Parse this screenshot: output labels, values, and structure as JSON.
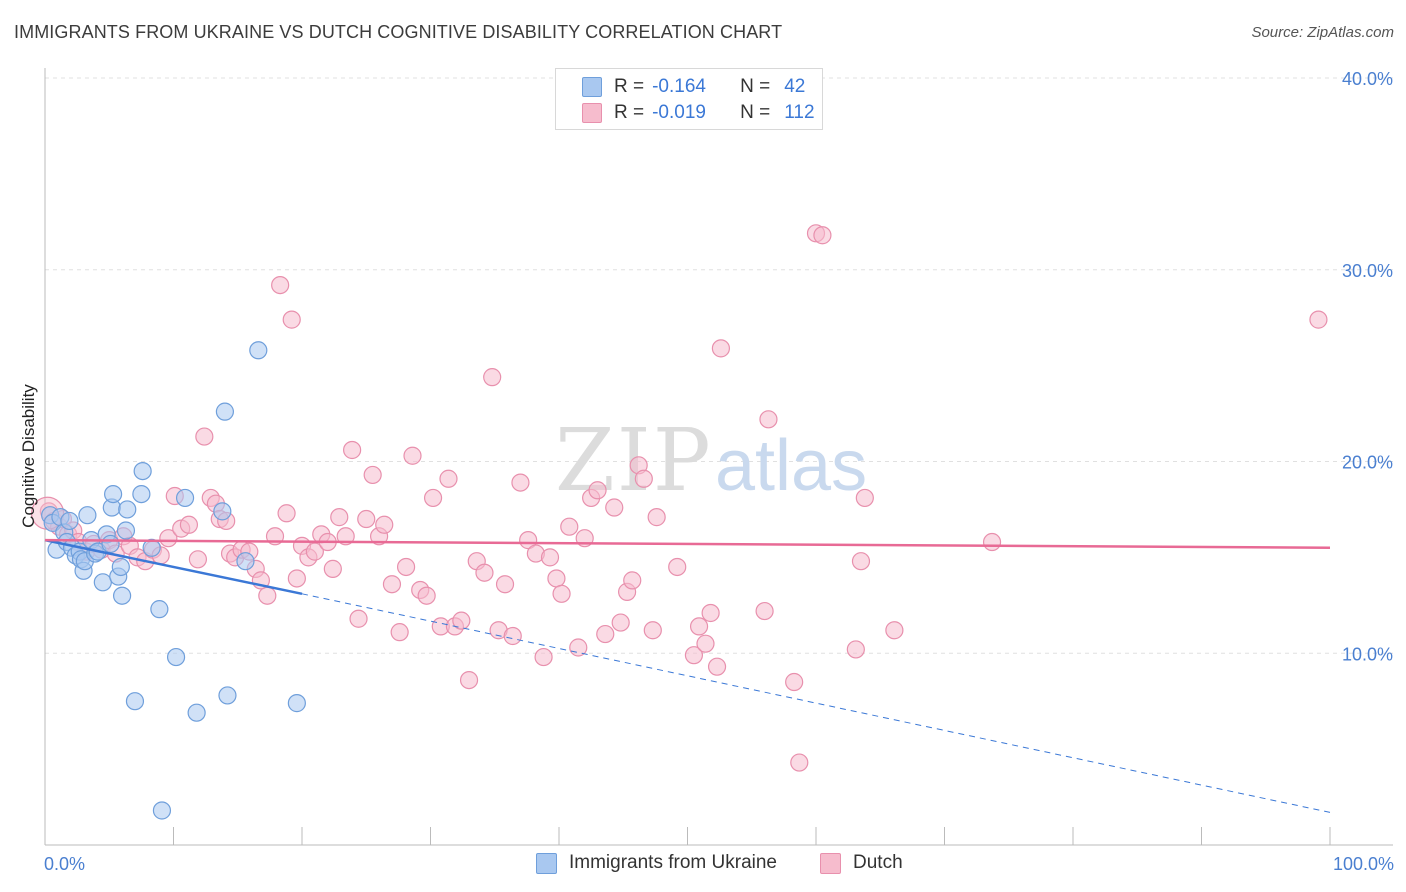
{
  "title": "IMMIGRANTS FROM UKRAINE VS DUTCH COGNITIVE DISABILITY CORRELATION CHART",
  "source": "Source: ZipAtlas.com",
  "watermark": {
    "zip": "ZIP",
    "atlas": "atlas"
  },
  "legend": {
    "rows": [
      {
        "r_label": "R =",
        "r_value": "-0.164",
        "n_label": "N =",
        "n_value": "42",
        "color": "#a9c8f0",
        "border": "#6f9fdb"
      },
      {
        "r_label": "R =",
        "r_value": "-0.019",
        "n_label": "N =",
        "n_value": "112",
        "color": "#f6bccd",
        "border": "#e890ad"
      }
    ]
  },
  "bottom_legend": [
    {
      "label": "Immigrants from Ukraine",
      "color": "#a9c8f0",
      "border": "#6f9fdb"
    },
    {
      "label": "Dutch",
      "color": "#f6bccd",
      "border": "#e890ad"
    }
  ],
  "chart_data": {
    "type": "scatter",
    "title": "IMMIGRANTS FROM UKRAINE VS DUTCH COGNITIVE DISABILITY CORRELATION CHART",
    "xlabel": "",
    "ylabel": "Cognitive Disability",
    "xlim": [
      0,
      100
    ],
    "ylim": [
      0,
      40
    ],
    "x_tick_labels": [
      "0.0%",
      "100.0%"
    ],
    "y_ticks": [
      10,
      20,
      30,
      40
    ],
    "y_tick_labels": [
      "10.0%",
      "20.0%",
      "30.0%",
      "40.0%"
    ],
    "grid": true,
    "series": [
      {
        "name": "Immigrants from Ukraine",
        "color": "#a9c8f0",
        "stroke": "#6f9fdb",
        "trend_color": "#3b78d6",
        "trend": {
          "x0": 0,
          "y0": 15.9,
          "x1": 20,
          "y1": 13.1,
          "dash_to_x": 100,
          "dash_to_y": 1.7
        },
        "points": [
          [
            0.4,
            17.2
          ],
          [
            0.6,
            16.8
          ],
          [
            0.9,
            15.4
          ],
          [
            1.2,
            17.1
          ],
          [
            1.5,
            16.3
          ],
          [
            1.7,
            15.8
          ],
          [
            1.9,
            16.9
          ],
          [
            2.1,
            15.5
          ],
          [
            2.4,
            15.1
          ],
          [
            2.7,
            15.3
          ],
          [
            2.8,
            14.9
          ],
          [
            3.0,
            14.3
          ],
          [
            3.1,
            14.8
          ],
          [
            3.3,
            17.2
          ],
          [
            3.6,
            15.9
          ],
          [
            3.9,
            15.2
          ],
          [
            4.1,
            15.3
          ],
          [
            4.5,
            13.7
          ],
          [
            4.8,
            16.2
          ],
          [
            5.1,
            15.7
          ],
          [
            5.2,
            17.6
          ],
          [
            5.3,
            18.3
          ],
          [
            5.7,
            14.0
          ],
          [
            5.9,
            14.5
          ],
          [
            6.0,
            13.0
          ],
          [
            6.3,
            16.4
          ],
          [
            6.4,
            17.5
          ],
          [
            7.0,
            7.5
          ],
          [
            7.5,
            18.3
          ],
          [
            7.6,
            19.5
          ],
          [
            8.3,
            15.5
          ],
          [
            8.9,
            12.3
          ],
          [
            9.1,
            1.8
          ],
          [
            10.2,
            9.8
          ],
          [
            10.9,
            18.1
          ],
          [
            11.8,
            6.9
          ],
          [
            13.8,
            17.4
          ],
          [
            14.0,
            22.6
          ],
          [
            14.2,
            7.8
          ],
          [
            15.6,
            14.8
          ],
          [
            16.6,
            25.8
          ],
          [
            19.6,
            7.4
          ]
        ]
      },
      {
        "name": "Dutch",
        "color": "#f6bccd",
        "stroke": "#e890ad",
        "trend_color": "#e86a95",
        "trend": {
          "x0": 0,
          "y0": 15.9,
          "x1": 100,
          "y1": 15.5
        },
        "points": [
          [
            0.3,
            17.4
          ],
          [
            0.7,
            16.9
          ],
          [
            1.1,
            16.6
          ],
          [
            1.4,
            17.0
          ],
          [
            1.8,
            16.2
          ],
          [
            2.2,
            16.4
          ],
          [
            2.6,
            15.8
          ],
          [
            3.2,
            15.3
          ],
          [
            3.8,
            15.7
          ],
          [
            4.4,
            15.4
          ],
          [
            5.0,
            15.9
          ],
          [
            5.5,
            15.2
          ],
          [
            6.1,
            16.1
          ],
          [
            6.6,
            15.6
          ],
          [
            7.2,
            15.0
          ],
          [
            7.8,
            14.8
          ],
          [
            8.4,
            15.4
          ],
          [
            9.0,
            15.1
          ],
          [
            9.6,
            16.0
          ],
          [
            10.1,
            18.2
          ],
          [
            10.6,
            16.5
          ],
          [
            11.2,
            16.7
          ],
          [
            11.9,
            14.9
          ],
          [
            12.4,
            21.3
          ],
          [
            12.9,
            18.1
          ],
          [
            13.3,
            17.8
          ],
          [
            13.6,
            17.0
          ],
          [
            14.1,
            16.9
          ],
          [
            14.4,
            15.2
          ],
          [
            14.8,
            15.0
          ],
          [
            15.3,
            15.4
          ],
          [
            15.9,
            15.3
          ],
          [
            16.4,
            14.4
          ],
          [
            16.8,
            13.8
          ],
          [
            17.3,
            13.0
          ],
          [
            17.9,
            16.1
          ],
          [
            18.3,
            29.2
          ],
          [
            18.8,
            17.3
          ],
          [
            19.2,
            27.4
          ],
          [
            19.6,
            13.9
          ],
          [
            20.0,
            15.6
          ],
          [
            20.5,
            15.0
          ],
          [
            21.0,
            15.3
          ],
          [
            21.5,
            16.2
          ],
          [
            22.0,
            15.8
          ],
          [
            22.4,
            14.4
          ],
          [
            22.9,
            17.1
          ],
          [
            23.4,
            16.1
          ],
          [
            23.9,
            20.6
          ],
          [
            24.4,
            11.8
          ],
          [
            25.0,
            17.0
          ],
          [
            25.5,
            19.3
          ],
          [
            26.0,
            16.1
          ],
          [
            26.4,
            16.7
          ],
          [
            27.0,
            13.6
          ],
          [
            27.6,
            11.1
          ],
          [
            28.1,
            14.5
          ],
          [
            28.6,
            20.3
          ],
          [
            29.2,
            13.3
          ],
          [
            29.7,
            13.0
          ],
          [
            30.2,
            18.1
          ],
          [
            30.8,
            11.4
          ],
          [
            31.4,
            19.1
          ],
          [
            31.9,
            11.4
          ],
          [
            32.4,
            11.7
          ],
          [
            33.0,
            8.6
          ],
          [
            33.6,
            14.8
          ],
          [
            34.2,
            14.2
          ],
          [
            34.8,
            24.4
          ],
          [
            35.3,
            11.2
          ],
          [
            35.8,
            13.6
          ],
          [
            36.4,
            10.9
          ],
          [
            37.0,
            18.9
          ],
          [
            37.6,
            15.9
          ],
          [
            38.2,
            15.2
          ],
          [
            38.8,
            9.8
          ],
          [
            39.3,
            15.0
          ],
          [
            39.8,
            13.9
          ],
          [
            40.2,
            13.1
          ],
          [
            40.8,
            16.6
          ],
          [
            41.5,
            10.3
          ],
          [
            42.0,
            16.0
          ],
          [
            42.5,
            18.1
          ],
          [
            43.0,
            18.5
          ],
          [
            43.6,
            11.0
          ],
          [
            44.3,
            17.6
          ],
          [
            44.8,
            11.6
          ],
          [
            45.3,
            13.2
          ],
          [
            45.7,
            13.8
          ],
          [
            46.2,
            19.8
          ],
          [
            46.6,
            19.1
          ],
          [
            47.3,
            11.2
          ],
          [
            47.6,
            17.1
          ],
          [
            49.2,
            14.5
          ],
          [
            50.5,
            9.9
          ],
          [
            50.9,
            11.4
          ],
          [
            51.4,
            10.5
          ],
          [
            51.8,
            12.1
          ],
          [
            52.3,
            9.3
          ],
          [
            52.6,
            25.9
          ],
          [
            56.0,
            12.2
          ],
          [
            56.3,
            22.2
          ],
          [
            58.3,
            8.5
          ],
          [
            58.7,
            4.3
          ],
          [
            60.0,
            31.9
          ],
          [
            60.5,
            31.8
          ],
          [
            63.1,
            10.2
          ],
          [
            63.5,
            14.8
          ],
          [
            63.8,
            18.1
          ],
          [
            66.1,
            11.2
          ],
          [
            73.7,
            15.8
          ],
          [
            99.1,
            27.4
          ]
        ]
      }
    ]
  }
}
